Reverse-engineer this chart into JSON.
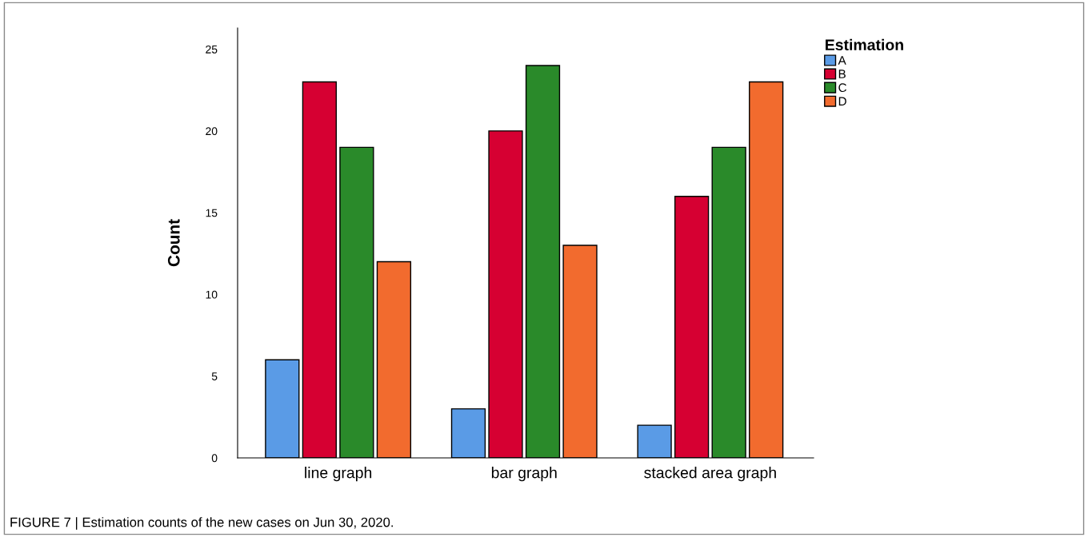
{
  "chart_data": {
    "type": "bar",
    "ylabel": "Count",
    "legend_title": "Estimation",
    "categories": [
      "line graph",
      "bar graph",
      "stacked area graph"
    ],
    "series": [
      {
        "name": "A",
        "color": "#5a9be6",
        "values": [
          6,
          3,
          2
        ]
      },
      {
        "name": "B",
        "color": "#d60032",
        "values": [
          23,
          20,
          16
        ]
      },
      {
        "name": "C",
        "color": "#2a8a2a",
        "values": [
          19,
          24,
          19
        ]
      },
      {
        "name": "D",
        "color": "#f26b2e",
        "values": [
          12,
          13,
          23
        ]
      }
    ],
    "ylim": [
      0,
      26.3
    ],
    "yticks": [
      0,
      5,
      10,
      15,
      20,
      25
    ],
    "grid": false,
    "legend": "top right",
    "annotations": [
      "FIGURE 7 | Estimation counts of the new cases on Jun 30, 2020."
    ]
  }
}
